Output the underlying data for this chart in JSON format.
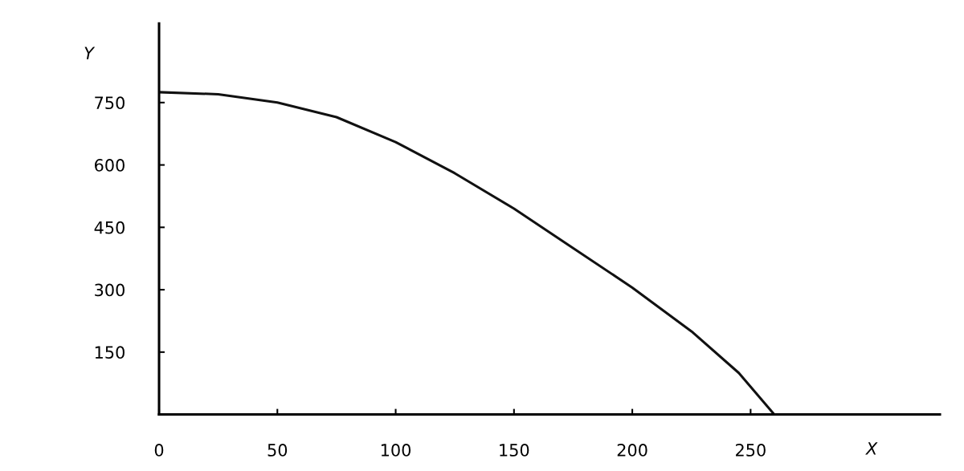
{
  "chart_data": {
    "type": "line",
    "xlabel": "X",
    "ylabel": "Y",
    "x": [
      0,
      25,
      50,
      75,
      100,
      125,
      150,
      175,
      200,
      225,
      245,
      260
    ],
    "series": [
      {
        "color": "#111111",
        "values": [
          775,
          770,
          750,
          715,
          655,
          580,
          495,
          400,
          305,
          200,
          100,
          0
        ]
      }
    ],
    "xlim": [
      0,
      330
    ],
    "ylim": [
      0,
      940
    ],
    "xticks": [
      0,
      50,
      100,
      150,
      200,
      250
    ],
    "yticks": [
      150,
      300,
      450,
      600,
      750
    ],
    "grid": false,
    "legend": false,
    "marker": "none",
    "line_style": "solid"
  }
}
